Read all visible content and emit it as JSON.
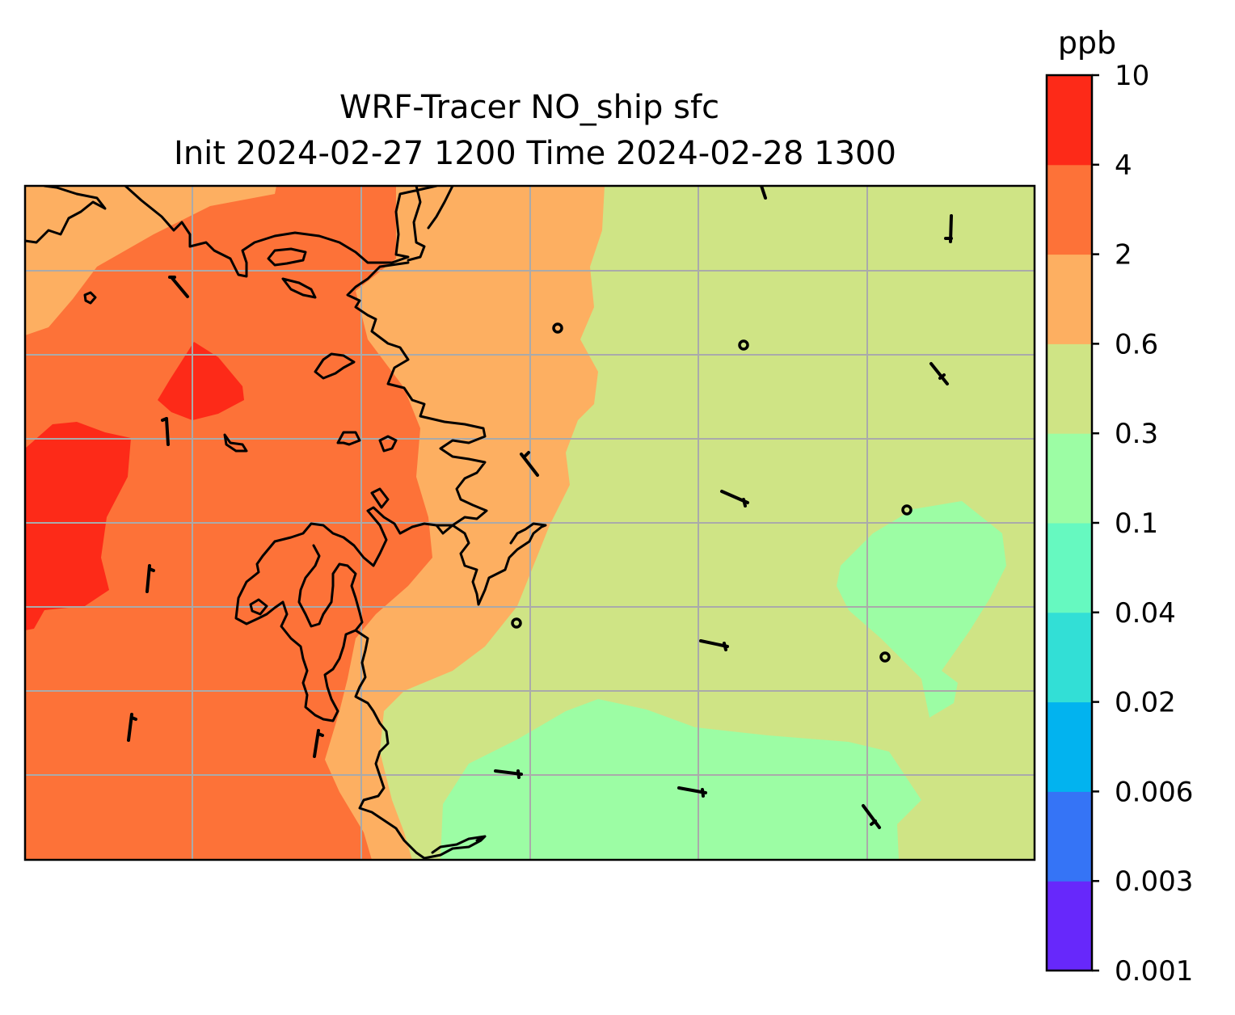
{
  "title": {
    "line1": "WRF-Tracer NO_ship sfc",
    "line2": "Init 2024-02-27 1200 Time 2024-02-28 1300"
  },
  "colorbar": {
    "unit": "ppb",
    "ticks": [
      "0.001",
      "0.003",
      "0.006",
      "0.02",
      "0.04",
      "0.1",
      "0.3",
      "0.6",
      "2",
      "4",
      "10"
    ],
    "colors": [
      "#6728fb",
      "#3574f6",
      "#02b3ef",
      "#32dfd6",
      "#66f9c0",
      "#9cfda4",
      "#cfe485",
      "#fdaf61",
      "#fd7238",
      "#fd2a18"
    ]
  },
  "map": {
    "level_colors": {
      "0.1-0.3": "#9cfda4",
      "0.3-0.6": "#cfe485",
      "0.6-2": "#fdaf61",
      "2-4": "#fd7238",
      "4-10": "#fd2a18"
    },
    "gridline_color": "#aaaaaa",
    "coastline_color": "#000000"
  }
}
